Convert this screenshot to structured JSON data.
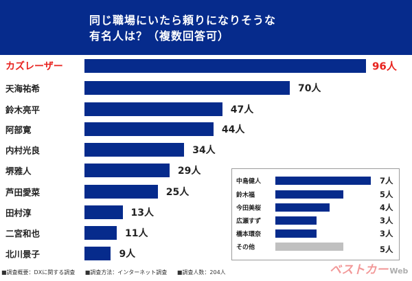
{
  "chart_data": {
    "type": "bar",
    "orientation": "horizontal",
    "title": "同じ職場にいたら頼りになりそうな\n有名人は？（複数回答可）",
    "title_lines": [
      "同じ職場にいたら頼りになりそうな",
      "有名人は？（複数回答可）"
    ],
    "unit": "人",
    "categories": [
      "カズレーザー",
      "天海祐希",
      "鈴木亮平",
      "阿部寛",
      "内村光良",
      "堺雅人",
      "芦田愛菜",
      "田村淳",
      "二宮和也",
      "北川景子"
    ],
    "values": [
      96,
      70,
      47,
      44,
      34,
      29,
      25,
      13,
      11,
      9
    ],
    "value_labels": [
      "96人",
      "70人",
      "47人",
      "44人",
      "34人",
      "29人",
      "25人",
      "13人",
      "11人",
      "9人"
    ],
    "highlight_index": 0,
    "grid": false,
    "inset": {
      "categories": [
        "中島健人",
        "鈴木福",
        "今田美桜",
        "広瀬すず",
        "橋本環奈",
        "その他"
      ],
      "values": [
        7,
        5,
        4,
        3,
        3,
        5
      ],
      "value_labels": [
        "7人",
        "5人",
        "4人",
        "3人",
        "3人",
        "5人"
      ],
      "colors": [
        "#062b8c",
        "#062b8c",
        "#062b8c",
        "#062b8c",
        "#062b8c",
        "#c0c0c0"
      ]
    }
  },
  "colors": {
    "bar": "#062b8c",
    "highlight": "#e8231f",
    "header": "#062b8c",
    "other": "#c0c0c0"
  },
  "footer": [
    "■調査概要：DXに関する調査",
    "■調査方法：インターネット調査",
    "■調査人数：204人"
  ],
  "logo": {
    "main": "ベストカー",
    "sub": "Web"
  }
}
